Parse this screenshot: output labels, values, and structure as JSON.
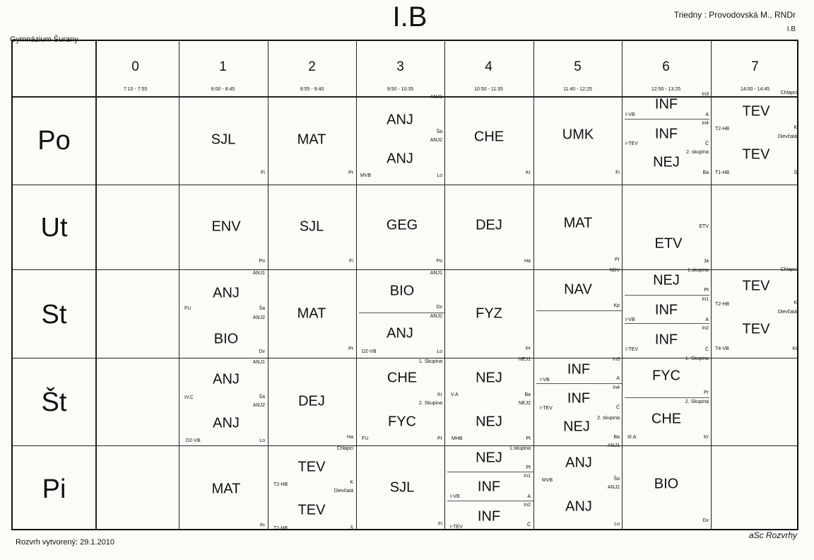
{
  "header": {
    "title": "I.B",
    "school": "Gymnázium Šurany",
    "teacher": "Triedny : Provodovská M., RNDr",
    "class_code": "I.B"
  },
  "footer": {
    "created": "Rozvrh vytvorený: 29.1.2010",
    "brand": "aSc Rozvrhy"
  },
  "periods": [
    {
      "num": "0",
      "time": "7:10 - 7:55"
    },
    {
      "num": "1",
      "time": "8:00 - 8:45"
    },
    {
      "num": "2",
      "time": "8:55 - 9:40"
    },
    {
      "num": "3",
      "time": "9:50 - 10:35"
    },
    {
      "num": "4",
      "time": "10:50 - 11:35"
    },
    {
      "num": "5",
      "time": "11:40 - 12:25"
    },
    {
      "num": "6",
      "time": "12:50 - 13:25"
    },
    {
      "num": "7",
      "time": "14:00 - 14:45"
    }
  ],
  "days": [
    "Po",
    "Ut",
    "St",
    "Št",
    "Pi"
  ],
  "lessons": {
    "po": {
      "p1": {
        "subject": "SJL",
        "teacher": "Fi"
      },
      "p2": {
        "subject": "MAT",
        "teacher": "Pr"
      },
      "p3": {
        "s1": "ANJ",
        "g1": "ANJ1",
        "t1": "Ša",
        "s2": "ANJ",
        "g2": "ANJ2",
        "room": "MVB",
        "t2": "Lo"
      },
      "p4": {
        "subject": "CHE",
        "teacher": "Kr"
      },
      "p5": {
        "subject": "UMK",
        "teacher": "Fi"
      },
      "p6": {
        "s1": "INF",
        "r1": "I-VB",
        "g1": "In3",
        "t1": "A",
        "s2": "INF",
        "r2": "I-TEV",
        "g2": "In4",
        "t2": "Č",
        "s3": "NEJ",
        "g3": "2. skupina",
        "t3": "Ba"
      },
      "p7": {
        "s1": "TEV",
        "g1": "Chlapci",
        "r1": "T2-HB",
        "t1": "K",
        "s2": "TEV",
        "g2": "Dievčatá",
        "r2": "T1-HB",
        "t2": "Š"
      }
    },
    "ut": {
      "p1": {
        "subject": "ENV",
        "teacher": "Po"
      },
      "p2": {
        "subject": "SJL",
        "teacher": "Fi"
      },
      "p3": {
        "subject": "GEG",
        "teacher": "Po"
      },
      "p4": {
        "subject": "DEJ",
        "teacher": "Ha"
      },
      "p5": {
        "subject": "MAT",
        "teacher": "Pr"
      },
      "p6": {
        "subject": "ETV",
        "room": "ETV",
        "teacher": "Ja"
      }
    },
    "st": {
      "p1": {
        "s1": "ANJ",
        "g1": "ANJ1",
        "t1": "Ša",
        "room": "FU",
        "s2": "BIO",
        "g2": "ANJ2",
        "t2": "Dv"
      },
      "p2": {
        "subject": "MAT",
        "teacher": "Pr"
      },
      "p3": {
        "s1": "BIO",
        "g1": "ANJ1",
        "t1": "Dv",
        "s2": "ANJ",
        "g2": "ANJ2",
        "r2": "D2-VB",
        "t2": "Lo"
      },
      "p4": {
        "subject": "FYZ",
        "teacher": "Pr"
      },
      "p5": {
        "subject": "NAV",
        "group": "NBV",
        "teacher": "Kp"
      },
      "p6": {
        "s1": "NEJ",
        "g1": "1.skupina",
        "t1": "Pt",
        "s2": "INF",
        "r2": "I-VB",
        "g2": "In1",
        "t2": "A",
        "s3": "INF",
        "r3": "I-TEV",
        "g3": "In2",
        "t3": "Č"
      },
      "p7": {
        "s1": "TEV",
        "g1": "Chlapci",
        "r1": "T2-HB",
        "t1": "K",
        "s2": "TEV",
        "g2": "Dievčatá",
        "r2": "T4-VB",
        "t2": "Kt"
      }
    },
    "stv": {
      "p1": {
        "s1": "ANJ",
        "g1": "ANJ1",
        "t1": "Ša",
        "room": "IV.C",
        "s2": "ANJ",
        "g2": "ANJ2",
        "r2": "D2-VB",
        "t2": "Lo"
      },
      "p2": {
        "subject": "DEJ",
        "teacher": "Ha"
      },
      "p3": {
        "s1": "CHE",
        "g1": "1. Skupina",
        "t1": "Kr",
        "s2": "FYC",
        "g2": "2. Skupina",
        "r2": "FU",
        "t2": "Pr"
      },
      "p4": {
        "s1": "NEJ",
        "g1": "NEJ1",
        "room": "V.A",
        "t1": "Ba",
        "s2": "NEJ",
        "g2": "NEJ2",
        "r2": "MHB",
        "t2": "Pt"
      },
      "p5": {
        "s1": "INF",
        "r1": "I-VB",
        "g1": "In3",
        "t1": "A",
        "s2": "INF",
        "r2": "I-TEV",
        "g2": "In4",
        "t2": "Č",
        "s3": "NEJ",
        "g3": "2. skupina",
        "t3": "Ba"
      },
      "p6": {
        "s1": "FYC",
        "g1": "1. Skupina",
        "t1": "Pr",
        "s2": "CHE",
        "g2": "2. Skupina",
        "r2": "III.A",
        "t2": "Kr"
      }
    },
    "pi": {
      "p1": {
        "subject": "MAT",
        "teacher": "Pr"
      },
      "p2": {
        "s1": "TEV",
        "g1": "Chlapci",
        "r1": "T2-HB",
        "t1": "K",
        "s2": "TEV",
        "g2": "Dievčatá",
        "r2": "T1-HB",
        "t2": "Š"
      },
      "p3": {
        "subject": "SJL",
        "teacher": "Fi"
      },
      "p4": {
        "s1": "NEJ",
        "g1": "1.skupina",
        "t1": "Pt",
        "s2": "INF",
        "r2": "I-VB",
        "g2": "In1",
        "t2": "A",
        "s3": "INF",
        "r3": "I-TEV",
        "g3": "In2",
        "t3": "Č"
      },
      "p5": {
        "s1": "ANJ",
        "g1": "ANJ1",
        "t1": "Ša",
        "room": "MVB",
        "s2": "ANJ",
        "g2": "ANJ2",
        "t2": "Lo"
      },
      "p6": {
        "subject": "BIO",
        "teacher": "Dv"
      }
    }
  }
}
